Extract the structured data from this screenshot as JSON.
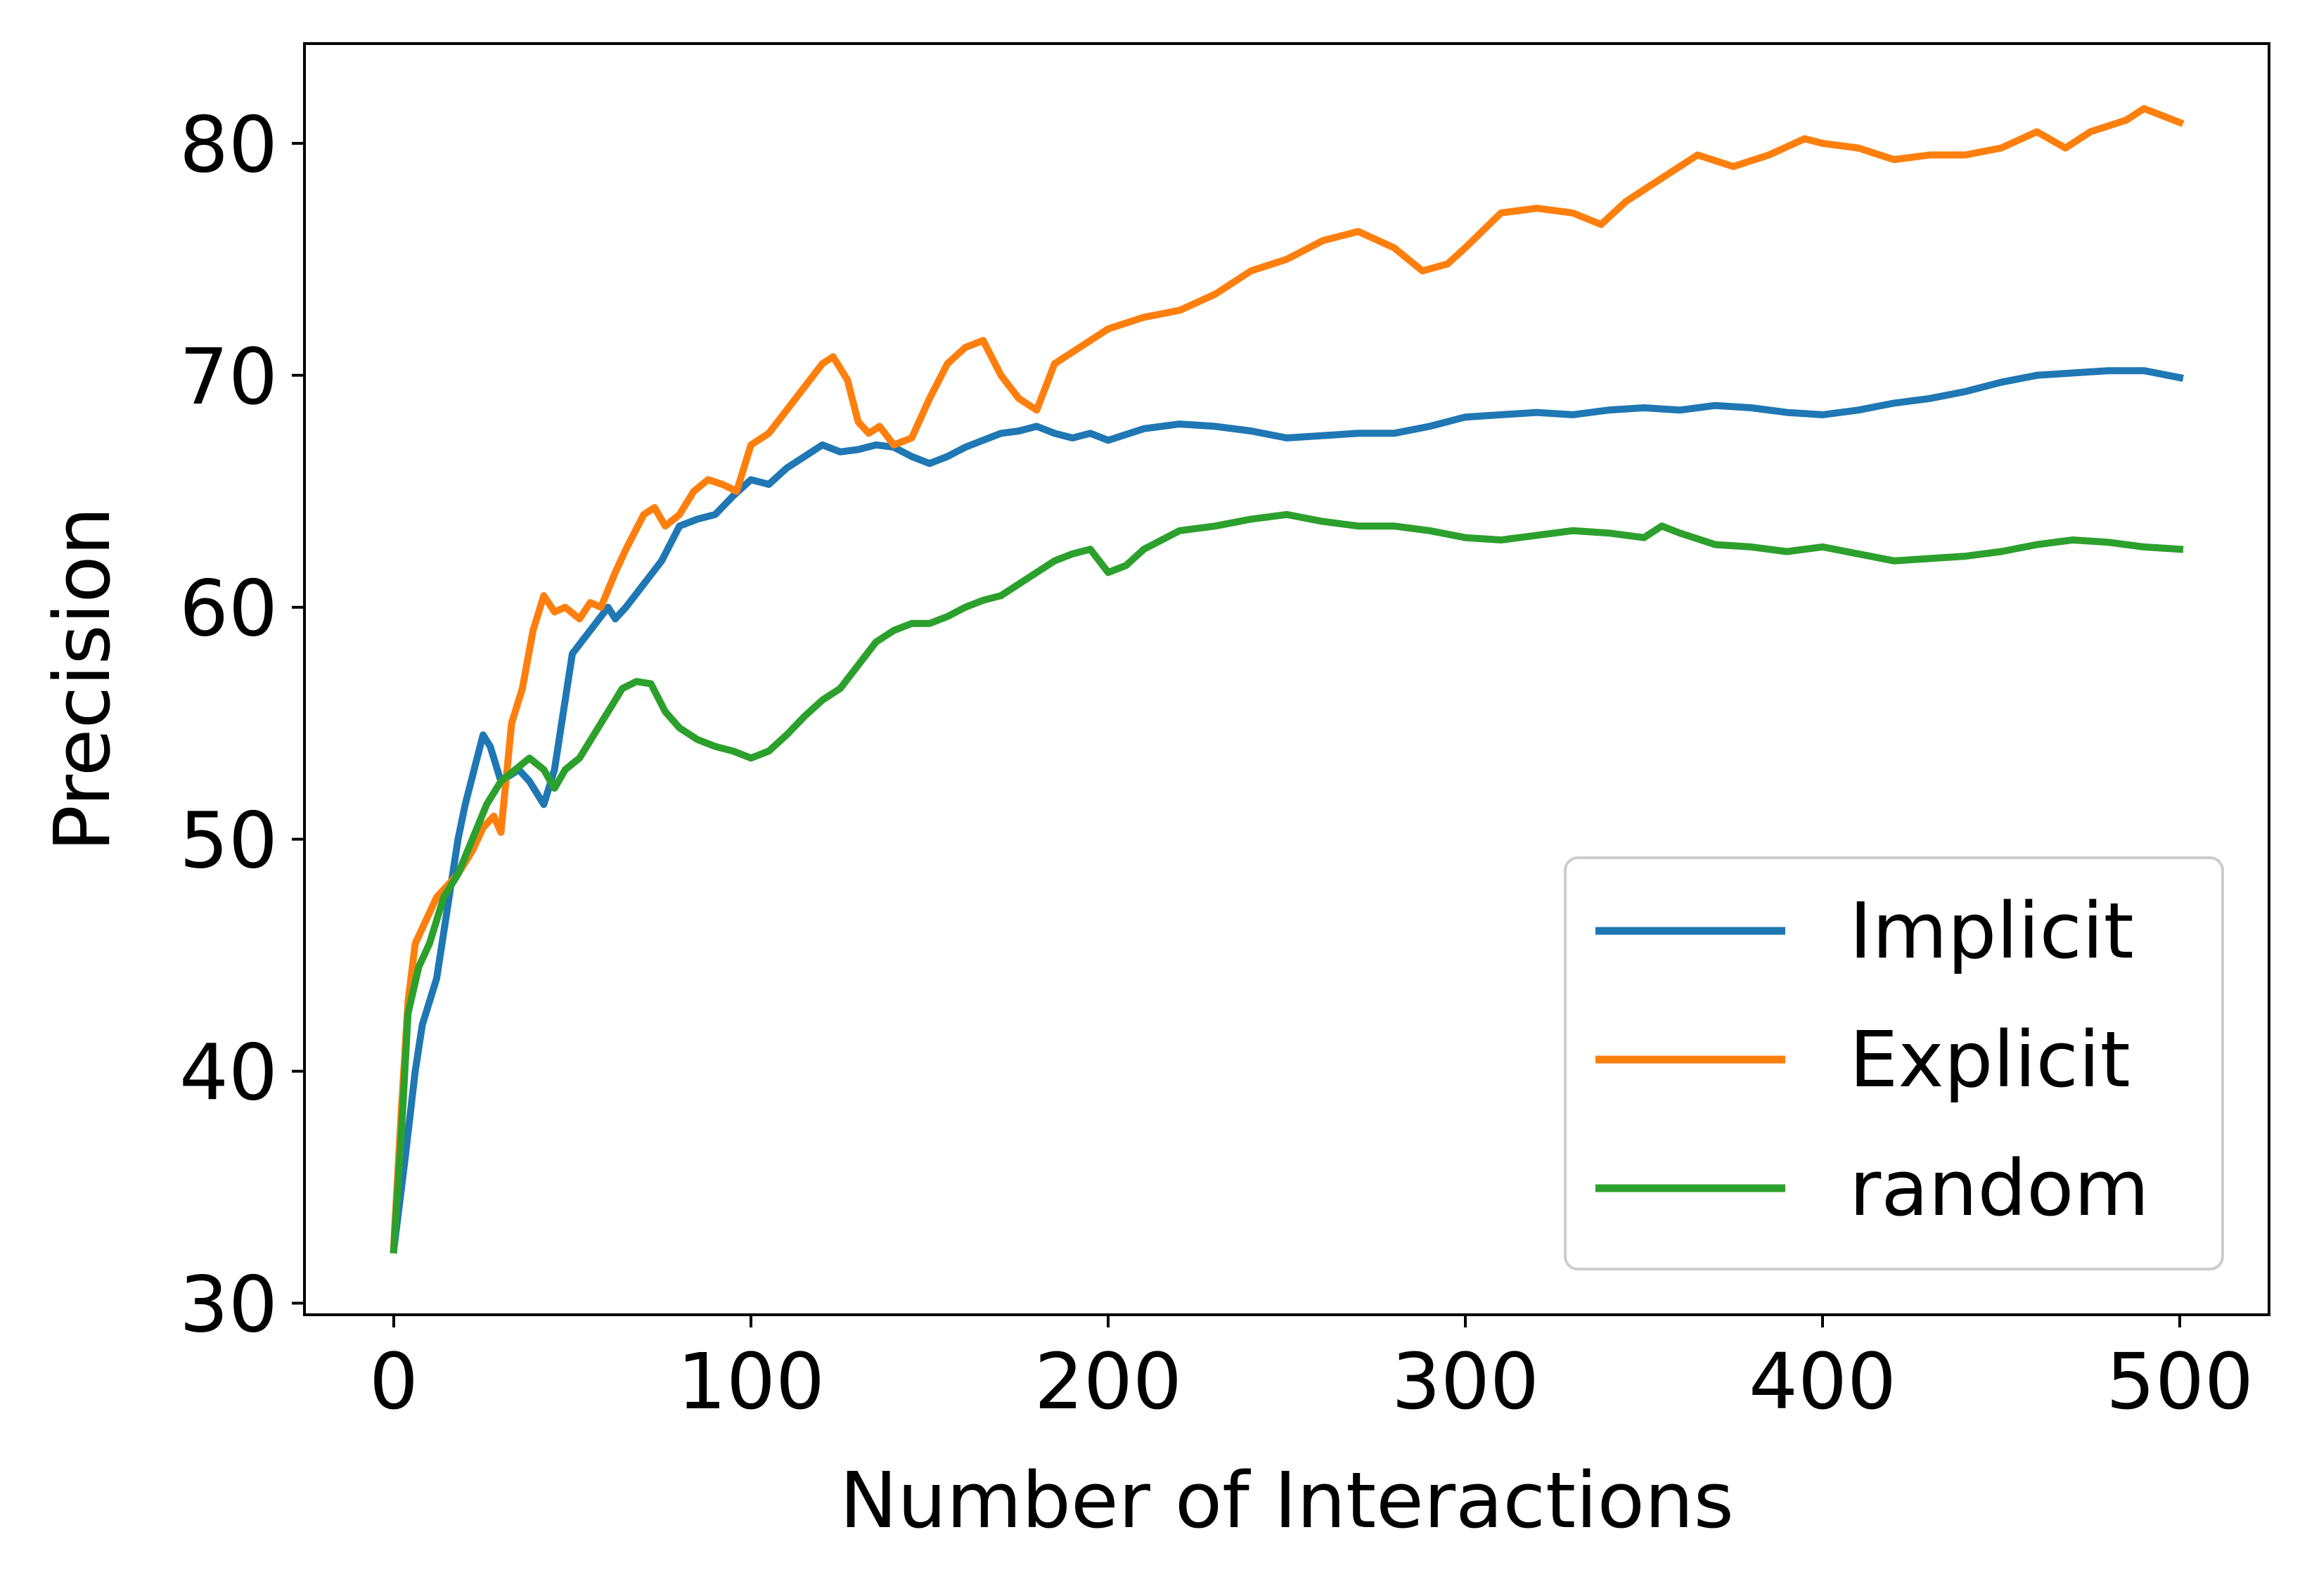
{
  "chart_data": {
    "type": "line",
    "title": "",
    "xlabel": "Number of Interactions",
    "ylabel": "Precision",
    "xlim": [
      -25,
      525
    ],
    "ylim": [
      29.5,
      84.3
    ],
    "xticks": [
      0,
      100,
      200,
      300,
      400,
      500
    ],
    "yticks": [
      30,
      40,
      50,
      60,
      70,
      80
    ],
    "grid": false,
    "legend_position": "lower right",
    "series": [
      {
        "name": "Implicit",
        "color": "#1f77b4",
        "x": [
          0,
          3,
          6,
          8,
          12,
          15,
          18,
          20,
          25,
          27,
          30,
          35,
          38,
          42,
          45,
          48,
          50,
          55,
          60,
          62,
          65,
          70,
          75,
          80,
          85,
          90,
          95,
          100,
          105,
          110,
          115,
          120,
          125,
          130,
          135,
          140,
          145,
          150,
          155,
          160,
          165,
          170,
          175,
          180,
          185,
          190,
          195,
          200,
          210,
          220,
          230,
          240,
          250,
          260,
          270,
          280,
          290,
          300,
          310,
          320,
          330,
          340,
          350,
          360,
          370,
          380,
          390,
          400,
          410,
          420,
          430,
          440,
          450,
          460,
          470,
          480,
          490,
          500
        ],
        "y": [
          32.3,
          36.0,
          40.0,
          42.0,
          44.0,
          47.0,
          50.0,
          51.5,
          54.5,
          54.0,
          52.5,
          53.0,
          52.5,
          51.5,
          53.0,
          56.0,
          58.0,
          59.0,
          60.0,
          59.5,
          60.0,
          61.0,
          62.0,
          63.5,
          63.8,
          64.0,
          64.8,
          65.5,
          65.3,
          66.0,
          66.5,
          67.0,
          66.7,
          66.8,
          67.0,
          66.9,
          66.5,
          66.2,
          66.5,
          66.9,
          67.2,
          67.5,
          67.6,
          67.8,
          67.5,
          67.3,
          67.5,
          67.2,
          67.7,
          67.9,
          67.8,
          67.6,
          67.3,
          67.4,
          67.5,
          67.5,
          67.8,
          68.2,
          68.3,
          68.4,
          68.3,
          68.5,
          68.6,
          68.5,
          68.7,
          68.6,
          68.4,
          68.3,
          68.5,
          68.8,
          69.0,
          69.3,
          69.7,
          70.0,
          70.1,
          70.2,
          70.2,
          69.9
        ]
      },
      {
        "name": "Explicit",
        "color": "#ff7f0e",
        "x": [
          0,
          2,
          4,
          6,
          9,
          12,
          15,
          18,
          22,
          25,
          28,
          30,
          33,
          36,
          39,
          42,
          45,
          48,
          52,
          55,
          58,
          62,
          65,
          70,
          73,
          76,
          80,
          84,
          88,
          92,
          96,
          100,
          105,
          110,
          115,
          120,
          123,
          127,
          130,
          133,
          136,
          140,
          145,
          150,
          155,
          160,
          165,
          170,
          175,
          180,
          185,
          190,
          195,
          200,
          210,
          220,
          230,
          240,
          250,
          260,
          270,
          280,
          288,
          295,
          300,
          310,
          320,
          330,
          338,
          345,
          355,
          365,
          375,
          385,
          395,
          400,
          410,
          420,
          430,
          440,
          450,
          460,
          468,
          475,
          485,
          490,
          500
        ],
        "y": [
          32.5,
          38.0,
          43.0,
          45.5,
          46.5,
          47.5,
          48.0,
          48.5,
          49.5,
          50.5,
          51.0,
          50.3,
          55.0,
          56.5,
          59.0,
          60.5,
          59.8,
          60.0,
          59.5,
          60.2,
          60.0,
          61.5,
          62.5,
          64.0,
          64.3,
          63.5,
          64.0,
          65.0,
          65.5,
          65.3,
          65.0,
          67.0,
          67.5,
          68.5,
          69.5,
          70.5,
          70.8,
          69.8,
          68.0,
          67.5,
          67.8,
          67.0,
          67.3,
          69.0,
          70.5,
          71.2,
          71.5,
          70.0,
          69.0,
          68.5,
          70.5,
          71.0,
          71.5,
          72.0,
          72.5,
          72.8,
          73.5,
          74.5,
          75.0,
          75.8,
          76.2,
          75.5,
          74.5,
          74.8,
          75.5,
          77.0,
          77.2,
          77.0,
          76.5,
          77.5,
          78.5,
          79.5,
          79.0,
          79.5,
          80.2,
          80.0,
          79.8,
          79.3,
          79.5,
          79.5,
          79.8,
          80.5,
          79.8,
          80.5,
          81.0,
          81.5,
          80.9
        ]
      },
      {
        "name": "random",
        "color": "#2ca02c",
        "x": [
          0,
          2,
          4,
          7,
          10,
          14,
          18,
          22,
          26,
          30,
          34,
          38,
          42,
          45,
          48,
          52,
          56,
          60,
          64,
          68,
          72,
          76,
          80,
          85,
          90,
          95,
          100,
          105,
          110,
          115,
          120,
          125,
          130,
          135,
          140,
          145,
          150,
          155,
          160,
          165,
          170,
          175,
          180,
          185,
          190,
          195,
          200,
          205,
          210,
          220,
          230,
          240,
          250,
          260,
          270,
          280,
          290,
          300,
          310,
          320,
          330,
          340,
          350,
          355,
          360,
          370,
          380,
          390,
          400,
          410,
          420,
          430,
          440,
          450,
          460,
          470,
          480,
          490,
          500
        ],
        "y": [
          32.3,
          37.0,
          42.5,
          44.5,
          45.5,
          47.5,
          48.5,
          50.0,
          51.5,
          52.5,
          53.0,
          53.5,
          53.0,
          52.2,
          53.0,
          53.5,
          54.5,
          55.5,
          56.5,
          56.8,
          56.7,
          55.5,
          54.8,
          54.3,
          54.0,
          53.8,
          53.5,
          53.8,
          54.5,
          55.3,
          56.0,
          56.5,
          57.5,
          58.5,
          59.0,
          59.3,
          59.3,
          59.6,
          60.0,
          60.3,
          60.5,
          61.0,
          61.5,
          62.0,
          62.3,
          62.5,
          61.5,
          61.8,
          62.5,
          63.3,
          63.5,
          63.8,
          64.0,
          63.7,
          63.5,
          63.5,
          63.3,
          63.0,
          62.9,
          63.1,
          63.3,
          63.2,
          63.0,
          63.5,
          63.2,
          62.7,
          62.6,
          62.4,
          62.6,
          62.3,
          62.0,
          62.1,
          62.2,
          62.4,
          62.7,
          62.9,
          62.8,
          62.6,
          62.5
        ]
      }
    ]
  }
}
